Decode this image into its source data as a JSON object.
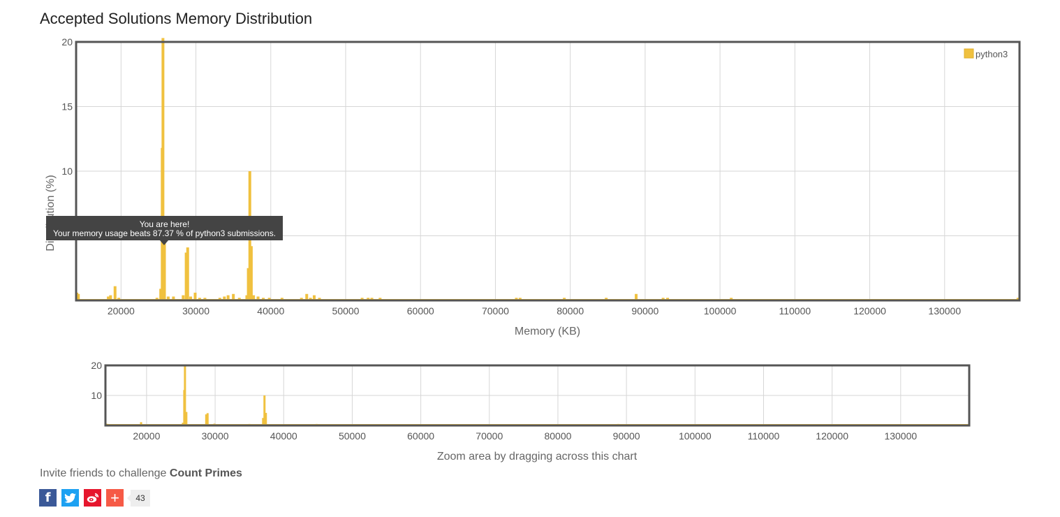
{
  "page": {
    "title": "Accepted Solutions Memory Distribution"
  },
  "tooltip": {
    "line1": "You are here!",
    "line2": "Your memory usage beats 87.37 % of python3 submissions."
  },
  "invite": {
    "prefix": "Invite friends to challenge ",
    "problem": "Count Primes"
  },
  "social": {
    "facebook_label": "f",
    "plus_label": "+",
    "count": "43"
  },
  "colors": {
    "series": "#f0c13f",
    "axis_frame": "#555555",
    "grid": "#d6d6d6",
    "tooltip_bg": "#444444"
  },
  "chart_data": [
    {
      "type": "bar",
      "title": "Accepted Solutions Memory Distribution",
      "xlabel": "Memory (KB)",
      "ylabel": "Distribution (%)",
      "xlim": [
        14000,
        140000
      ],
      "ylim": [
        0,
        20
      ],
      "xticks": [
        20000,
        30000,
        40000,
        50000,
        60000,
        70000,
        80000,
        90000,
        100000,
        110000,
        120000,
        130000
      ],
      "yticks": [
        5,
        10,
        15,
        20
      ],
      "grid": true,
      "legend": {
        "position": "top-right",
        "entries": [
          "python3"
        ]
      },
      "marker": {
        "x": 25700,
        "label": "You are here!"
      },
      "series": [
        {
          "name": "python3",
          "points": [
            [
              14100,
              0.6
            ],
            [
              14300,
              0.5
            ],
            [
              15500,
              0.1
            ],
            [
              17200,
              0.1
            ],
            [
              18300,
              0.3
            ],
            [
              18600,
              0.4
            ],
            [
              19200,
              1.1
            ],
            [
              19700,
              0.2
            ],
            [
              21000,
              0.1
            ],
            [
              22200,
              0.1
            ],
            [
              23300,
              0.1
            ],
            [
              24100,
              0.1
            ],
            [
              24800,
              0.2
            ],
            [
              25300,
              0.9
            ],
            [
              25500,
              11.8
            ],
            [
              25600,
              20.3
            ],
            [
              25800,
              4.5
            ],
            [
              26300,
              0.3
            ],
            [
              27000,
              0.3
            ],
            [
              28300,
              0.4
            ],
            [
              28700,
              3.7
            ],
            [
              28900,
              4.1
            ],
            [
              29300,
              0.3
            ],
            [
              29900,
              0.6
            ],
            [
              30500,
              0.2
            ],
            [
              31200,
              0.2
            ],
            [
              32000,
              0.1
            ],
            [
              33200,
              0.2
            ],
            [
              33800,
              0.3
            ],
            [
              34300,
              0.4
            ],
            [
              35000,
              0.5
            ],
            [
              35800,
              0.2
            ],
            [
              36800,
              0.4
            ],
            [
              37000,
              2.5
            ],
            [
              37200,
              10.0
            ],
            [
              37400,
              4.2
            ],
            [
              37700,
              0.4
            ],
            [
              38300,
              0.3
            ],
            [
              39000,
              0.2
            ],
            [
              39800,
              0.2
            ],
            [
              40800,
              0.1
            ],
            [
              41500,
              0.2
            ],
            [
              42500,
              0.1
            ],
            [
              43300,
              0.1
            ],
            [
              44100,
              0.2
            ],
            [
              44800,
              0.5
            ],
            [
              45300,
              0.2
            ],
            [
              45800,
              0.4
            ],
            [
              46500,
              0.2
            ],
            [
              47200,
              0.1
            ],
            [
              48200,
              0.1
            ],
            [
              49000,
              0.1
            ],
            [
              50000,
              0.1
            ],
            [
              51200,
              0.1
            ],
            [
              52200,
              0.2
            ],
            [
              53000,
              0.2
            ],
            [
              53500,
              0.2
            ],
            [
              54000,
              0.1
            ],
            [
              54600,
              0.2
            ],
            [
              56100,
              0.1
            ],
            [
              58500,
              0.1
            ],
            [
              60500,
              0.1
            ],
            [
              63200,
              0.1
            ],
            [
              64500,
              0.1
            ],
            [
              65700,
              0.1
            ],
            [
              67000,
              0.1
            ],
            [
              68500,
              0.1
            ],
            [
              70200,
              0.1
            ],
            [
              72800,
              0.2
            ],
            [
              73300,
              0.2
            ],
            [
              74500,
              0.1
            ],
            [
              77000,
              0.1
            ],
            [
              79200,
              0.2
            ],
            [
              80000,
              0.1
            ],
            [
              81000,
              0.1
            ],
            [
              81900,
              0.1
            ],
            [
              82300,
              0.1
            ],
            [
              84800,
              0.2
            ],
            [
              85700,
              0.1
            ],
            [
              86100,
              0.1
            ],
            [
              88800,
              0.5
            ],
            [
              92400,
              0.2
            ],
            [
              93000,
              0.2
            ],
            [
              94400,
              0.1
            ],
            [
              97800,
              0.1
            ],
            [
              98600,
              0.1
            ],
            [
              101500,
              0.2
            ],
            [
              102200,
              0.1
            ],
            [
              105700,
              0.1
            ],
            [
              107900,
              0.1
            ],
            [
              112000,
              0.1
            ],
            [
              117500,
              0.1
            ],
            [
              119500,
              0.1
            ],
            [
              125200,
              0.1
            ],
            [
              134600,
              0.1
            ],
            [
              139800,
              0.2
            ]
          ]
        }
      ]
    },
    {
      "type": "bar",
      "xlabel": "Zoom area by dragging across this chart",
      "xlim": [
        14000,
        140000
      ],
      "ylim": [
        0,
        20
      ],
      "xticks": [
        20000,
        30000,
        40000,
        50000,
        60000,
        70000,
        80000,
        90000,
        100000,
        110000,
        120000,
        130000
      ],
      "yticks": [
        10,
        20
      ],
      "grid": true,
      "series": [
        {
          "name": "python3",
          "same_as_main": true
        }
      ]
    }
  ]
}
